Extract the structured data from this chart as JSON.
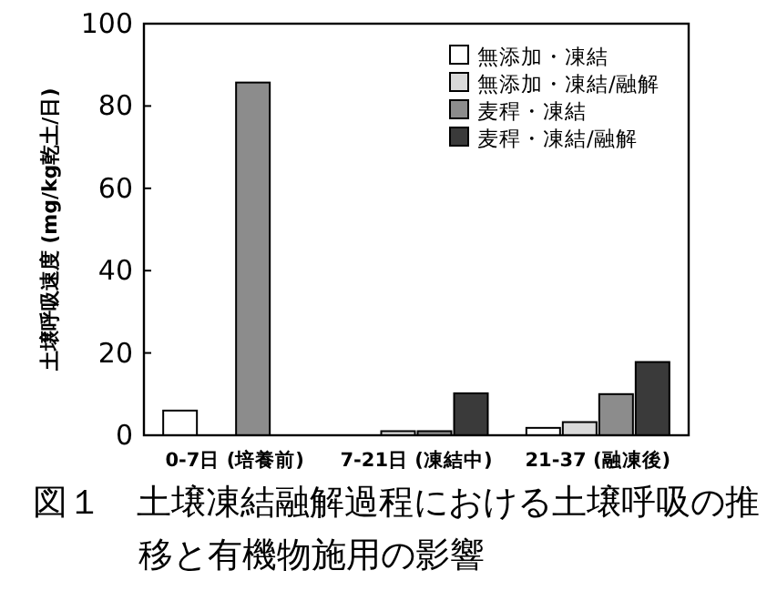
{
  "chart_data": {
    "type": "bar",
    "title": "図１　土壌凍結融解過程における土壌呼吸の推移と有機物施用の影響",
    "ylabel": "土壌呼吸速度 (mg/kg乾土/日)",
    "categories": [
      "0-7日 (培養前)",
      "7-21日 (凍結中)",
      "21-37 (融凍後)"
    ],
    "series": [
      {
        "name": "無添加・凍結",
        "color": "#ffffff",
        "values": [
          6,
          null,
          1.8
        ]
      },
      {
        "name": "無添加・凍結/融解",
        "color": "#d9d9d9",
        "values": [
          null,
          1,
          3.2
        ]
      },
      {
        "name": "麦稈・凍結",
        "color": "#8c8c8c",
        "values": [
          85.7,
          1,
          10
        ]
      },
      {
        "name": "麦稈・凍結/融解",
        "color": "#3a3a3a",
        "values": [
          null,
          10.2,
          17.8
        ]
      }
    ],
    "ylim": [
      0,
      100
    ],
    "yticks": [
      0,
      20,
      40,
      60,
      80,
      100
    ],
    "grid": false,
    "legend": "top right"
  }
}
